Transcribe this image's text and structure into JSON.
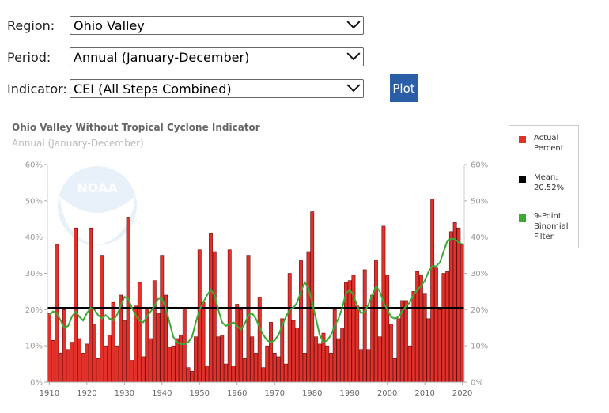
{
  "form": {
    "fields": [
      {
        "label": "Region:",
        "value": "Ohio Valley"
      },
      {
        "label": "Period:",
        "value": "Annual (January-December)"
      },
      {
        "label": "Indicator:",
        "value": "CEI (All Steps Combined)"
      }
    ],
    "button": "Plot"
  },
  "chart_data": {
    "type": "bar",
    "title": "Ohio Valley Without Tropical Cyclone Indicator",
    "subtitle": "Annual (January-December)",
    "logo_text": "NOAA",
    "x": [
      1910,
      1911,
      1912,
      1913,
      1914,
      1915,
      1916,
      1917,
      1918,
      1919,
      1920,
      1921,
      1922,
      1923,
      1924,
      1925,
      1926,
      1927,
      1928,
      1929,
      1930,
      1931,
      1932,
      1933,
      1934,
      1935,
      1936,
      1937,
      1938,
      1939,
      1940,
      1941,
      1942,
      1943,
      1944,
      1945,
      1946,
      1947,
      1948,
      1949,
      1950,
      1951,
      1952,
      1953,
      1954,
      1955,
      1956,
      1957,
      1958,
      1959,
      1960,
      1961,
      1962,
      1963,
      1964,
      1965,
      1966,
      1967,
      1968,
      1969,
      1970,
      1971,
      1972,
      1973,
      1974,
      1975,
      1976,
      1977,
      1978,
      1979,
      1980,
      1981,
      1982,
      1983,
      1984,
      1985,
      1986,
      1987,
      1988,
      1989,
      1990,
      1991,
      1992,
      1993,
      1994,
      1995,
      1996,
      1997,
      1998,
      1999,
      2000,
      2001,
      2002,
      2003,
      2004,
      2005,
      2006,
      2007,
      2008,
      2009,
      2010,
      2011,
      2012,
      2013,
      2014,
      2015,
      2016,
      2017,
      2018,
      2019,
      2020
    ],
    "series": [
      {
        "name": "Actual Percent",
        "color": "#e2312b",
        "values": [
          19,
          11.5,
          38,
          8,
          20,
          9,
          11,
          42.5,
          12,
          8,
          10.5,
          42.5,
          16,
          6.5,
          35,
          10,
          13,
          22,
          10,
          24,
          17,
          45.5,
          6,
          21,
          27.5,
          7,
          20.5,
          12,
          28,
          19,
          35,
          24,
          9.5,
          10,
          12,
          13,
          20.5,
          4,
          3,
          12.5,
          36.5,
          22,
          4.5,
          41,
          36,
          12.5,
          13,
          5,
          36.5,
          4.5,
          21.5,
          20,
          6.5,
          35,
          12.5,
          8,
          23.5,
          4,
          10,
          16.5,
          8,
          7,
          17.5,
          5,
          30,
          17,
          15,
          33.5,
          8,
          36,
          47,
          12.5,
          10.5,
          13.5,
          10,
          8,
          20,
          12,
          15,
          27.5,
          28,
          29.5,
          21,
          9,
          31,
          9,
          24,
          33.5,
          12.5,
          43,
          29.5,
          16,
          6.5,
          17.5,
          22.5,
          22.5,
          10,
          25,
          30.5,
          29.5,
          24.5,
          17.5,
          50.5,
          31.5,
          20,
          30,
          30.5,
          41.5,
          44,
          42.5,
          38
        ]
      },
      {
        "name": "9-Point Binomial Filter",
        "color": "#3aaa35",
        "type": "line",
        "values": [
          18.5,
          19.5,
          19,
          17,
          15,
          15.5,
          18,
          19.5,
          18,
          17,
          19,
          20.5,
          20,
          18.5,
          17.5,
          18.5,
          17.5,
          17,
          18.5,
          21,
          23.5,
          23,
          20.5,
          18.5,
          17,
          16.5,
          18,
          19.5,
          21,
          23,
          23,
          20.5,
          16.5,
          12.5,
          11,
          10.5,
          10.5,
          11,
          12.5,
          16.5,
          20,
          22,
          24,
          25.5,
          24,
          20,
          16.5,
          15.5,
          16,
          16.5,
          15.5,
          14.5,
          16,
          18.5,
          19,
          17.5,
          15,
          13,
          11.5,
          11,
          11.5,
          13,
          15.5,
          18,
          20,
          20.5,
          22,
          25,
          27.5,
          26,
          22,
          17.5,
          13,
          11,
          11.5,
          13,
          15.5,
          17.5,
          20.5,
          24.5,
          25.5,
          24,
          21,
          19,
          19.5,
          21.5,
          24,
          26.5,
          25,
          22,
          20,
          18,
          17.5,
          18,
          19.5,
          21,
          22,
          24,
          25.5,
          26.5,
          28,
          30.5,
          32,
          32,
          33,
          36,
          39,
          39.5,
          39.5,
          38.5,
          38
        ]
      }
    ],
    "mean": 20.52,
    "mean_label": "Mean: 20.52%",
    "mean_color": "#000000",
    "xlim": [
      1909.5,
      2020.5
    ],
    "xticks": [
      1910,
      1920,
      1930,
      1940,
      1950,
      1960,
      1970,
      1980,
      1990,
      2000,
      2010,
      2020
    ],
    "ylim": [
      0,
      60
    ],
    "yticks": [
      {
        "value": 0,
        "label": "0%"
      },
      {
        "value": 10,
        "label": "10%"
      },
      {
        "value": 20,
        "label": "20%"
      },
      {
        "value": 30,
        "label": "30%"
      },
      {
        "value": 40,
        "label": "40%"
      },
      {
        "value": 50,
        "label": "50%"
      },
      {
        "value": 60,
        "label": "60%"
      }
    ],
    "grid": false
  }
}
